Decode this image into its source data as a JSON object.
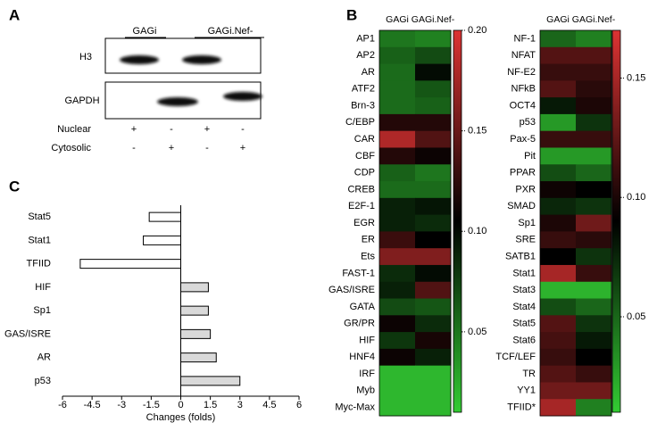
{
  "blot": {
    "panel_label": "A",
    "groups": [
      "GAGi",
      "GAGi.Nef-"
    ],
    "proteins": [
      "H3",
      "GAPDH"
    ],
    "fractions": [
      {
        "name": "Nuclear",
        "signs": [
          "+",
          "-",
          "+",
          "-"
        ]
      },
      {
        "name": "Cytosolic",
        "signs": [
          "-",
          "+",
          "-",
          "+"
        ]
      }
    ]
  },
  "chart_data": [
    {
      "type": "heatmap",
      "panel_label": "B",
      "columns": [
        "GAGi",
        "GAGi.Nef-"
      ],
      "rows": [
        "AP1",
        "AP2",
        "AR",
        "ATF2",
        "Brn-3",
        "C/EBP",
        "CAR",
        "CBF",
        "CDP",
        "CREB",
        "E2F-1",
        "EGR",
        "ER",
        "Ets",
        "FAST-1",
        "GAS/ISRE",
        "GATA",
        "GR/PR",
        "HIF",
        "HNF4",
        "IRF",
        "Myb",
        "Myc-Max"
      ],
      "values": [
        [
          0.05,
          0.045
        ],
        [
          0.06,
          0.07
        ],
        [
          0.055,
          0.1
        ],
        [
          0.055,
          0.065
        ],
        [
          0.055,
          0.06
        ],
        [
          0.12,
          0.12
        ],
        [
          0.18,
          0.14
        ],
        [
          0.12,
          0.11
        ],
        [
          0.06,
          0.05
        ],
        [
          0.055,
          0.055
        ],
        [
          0.09,
          0.095
        ],
        [
          0.09,
          0.085
        ],
        [
          0.13,
          0.105
        ],
        [
          0.16,
          0.16
        ],
        [
          0.085,
          0.1
        ],
        [
          0.09,
          0.14
        ],
        [
          0.07,
          0.065
        ],
        [
          0.11,
          0.085
        ],
        [
          0.08,
          0.115
        ],
        [
          0.11,
          0.09
        ],
        [
          0.02,
          0.02
        ],
        [
          0.02,
          0.02
        ],
        [
          0.02,
          0.02
        ]
      ],
      "colormap": [
        "#33cc33",
        "#000000",
        "#dd3333"
      ],
      "colorbar_lim": [
        0.01,
        0.2
      ],
      "colorbar_ticks": [
        0.05,
        {
          "value": 0.1,
          "label": "0.10"
        },
        0.15,
        {
          "value": 0.2,
          "label": "0.20"
        }
      ]
    },
    {
      "type": "heatmap",
      "columns": [
        "GAGi",
        "GAGi.Nef-"
      ],
      "rows": [
        "NF-1",
        "NFAT",
        "NF-E2",
        "NFkB",
        "OCT4",
        "p53",
        "Pax-5",
        "Pit",
        "PPAR",
        "PXR",
        "SMAD",
        "Sp1",
        "SRE",
        "SATB1",
        "Stat1",
        "Stat3",
        "Stat4",
        "Stat5",
        "Stat6",
        "TCF/LEF",
        "TR",
        "YY1",
        "TFIID*"
      ],
      "values": [
        [
          0.05,
          0.04
        ],
        [
          0.12,
          0.12
        ],
        [
          0.11,
          0.11
        ],
        [
          0.12,
          0.105
        ],
        [
          0.08,
          0.1
        ],
        [
          0.03,
          0.07
        ],
        [
          0.11,
          0.11
        ],
        [
          0.03,
          0.03
        ],
        [
          0.06,
          0.05
        ],
        [
          0.095,
          0.09
        ],
        [
          0.075,
          0.07
        ],
        [
          0.1,
          0.13
        ],
        [
          0.11,
          0.105
        ],
        [
          0.09,
          0.07
        ],
        [
          0.15,
          0.11
        ],
        [
          0.02,
          0.02
        ],
        [
          0.06,
          0.05
        ],
        [
          0.12,
          0.07
        ],
        [
          0.115,
          0.08
        ],
        [
          0.11,
          0.09
        ],
        [
          0.12,
          0.11
        ],
        [
          0.13,
          0.13
        ],
        [
          0.15,
          0.04
        ]
      ],
      "colormap": [
        "#33cc33",
        "#000000",
        "#dd3333"
      ],
      "colorbar_lim": [
        0.01,
        0.17
      ],
      "colorbar_ticks": [
        0.05,
        {
          "value": 0.1,
          "label": "0.10"
        },
        0.15
      ]
    },
    {
      "type": "hbar",
      "panel_label": "C",
      "categories": [
        "Stat5",
        "Stat1",
        "TFIID",
        "HIF",
        "Sp1",
        "GAS/ISRE",
        "AR",
        "p53"
      ],
      "values": [
        -1.6,
        -1.9,
        -5.1,
        1.4,
        1.4,
        1.5,
        1.8,
        3.0
      ],
      "colors": [
        "#ffffff",
        "#ffffff",
        "#ffffff",
        "#d9d9d9",
        "#d9d9d9",
        "#d9d9d9",
        "#d9d9d9",
        "#d9d9d9"
      ],
      "xlim": [
        -6,
        6
      ],
      "xticks": [
        -6,
        -4.5,
        -3,
        -1.5,
        0,
        1.5,
        3,
        4.5,
        6
      ],
      "xlabel": "Changes (folds)"
    }
  ]
}
